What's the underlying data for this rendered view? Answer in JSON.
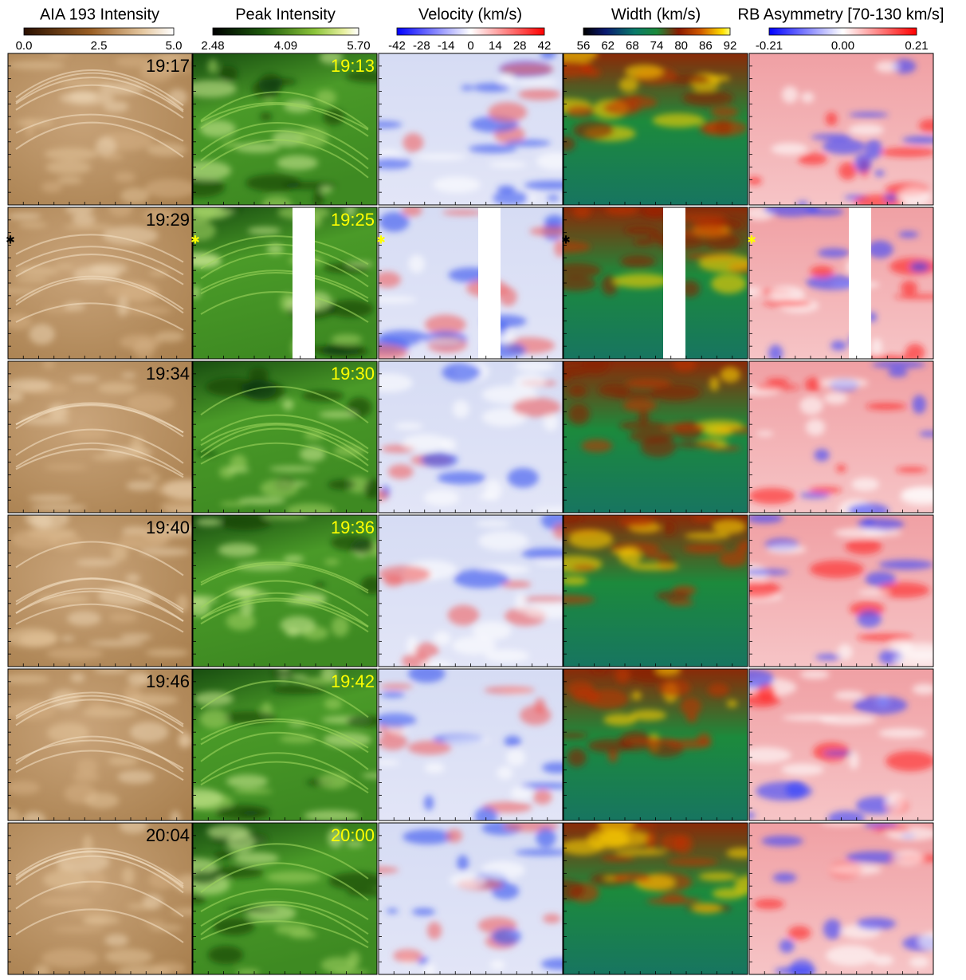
{
  "figure": {
    "columns": [
      {
        "title": "AIA 193 Intensity",
        "ticks": [
          "0.0",
          "2.5",
          "5.0"
        ]
      },
      {
        "title": "Peak Intensity",
        "ticks": [
          "2.48",
          "4.09",
          "5.70"
        ]
      },
      {
        "title": "Velocity (km/s)",
        "ticks": [
          "-42",
          "-28",
          "-14",
          "0",
          "14",
          "28",
          "42"
        ]
      },
      {
        "title": "Width (km/s)",
        "ticks": [
          "56",
          "62",
          "68",
          "74",
          "80",
          "86",
          "92"
        ]
      },
      {
        "title": "RB Asymmetry [70-130 km/s]",
        "ticks": [
          "-0.21",
          "0.00",
          "0.21"
        ]
      }
    ],
    "rows": [
      {
        "aia_time": "19:17",
        "eis_time": "19:13"
      },
      {
        "aia_time": "19:29",
        "eis_time": "19:25"
      },
      {
        "aia_time": "19:34",
        "eis_time": "19:30"
      },
      {
        "aia_time": "19:40",
        "eis_time": "19:36"
      },
      {
        "aia_time": "19:46",
        "eis_time": "19:42"
      },
      {
        "aia_time": "20:04",
        "eis_time": "20:00"
      }
    ]
  }
}
